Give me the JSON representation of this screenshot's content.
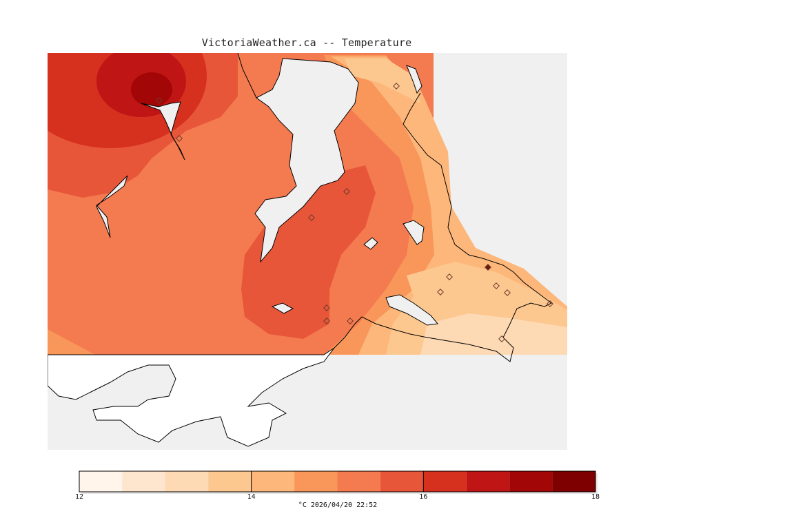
{
  "title": "VictoriaWeather.ca -- Temperature",
  "colors": {
    "water": "#f0f0f0",
    "land": "#ffffff",
    "coast": "#000000",
    "station_marker": "#6b3a2a"
  },
  "legend": {
    "units_label": "°C",
    "timestamp": "2026/04/20 22:52",
    "range": [
      12,
      18
    ],
    "tick_labels": [
      "12",
      "14",
      "16",
      "18"
    ],
    "bands": [
      {
        "from": 12.0,
        "to": 12.5,
        "color": "#fff5eb"
      },
      {
        "from": 12.5,
        "to": 13.0,
        "color": "#fee6ce"
      },
      {
        "from": 13.0,
        "to": 13.5,
        "color": "#fdd9b4"
      },
      {
        "from": 13.5,
        "to": 14.0,
        "color": "#fdc88f"
      },
      {
        "from": 14.0,
        "to": 14.5,
        "color": "#fdb77a"
      },
      {
        "from": 14.5,
        "to": 15.0,
        "color": "#f9975a"
      },
      {
        "from": 15.0,
        "to": 15.5,
        "color": "#f47a50"
      },
      {
        "from": 15.5,
        "to": 16.0,
        "color": "#e8563a"
      },
      {
        "from": 16.0,
        "to": 16.5,
        "color": "#d6301f"
      },
      {
        "from": 16.5,
        "to": 17.0,
        "color": "#bf1515"
      },
      {
        "from": 17.0,
        "to": 17.5,
        "color": "#a30606"
      },
      {
        "from": 17.5,
        "to": 18.0,
        "color": "#7f0000"
      }
    ]
  },
  "map": {
    "layer": "Temperature",
    "stations_count": 18
  }
}
